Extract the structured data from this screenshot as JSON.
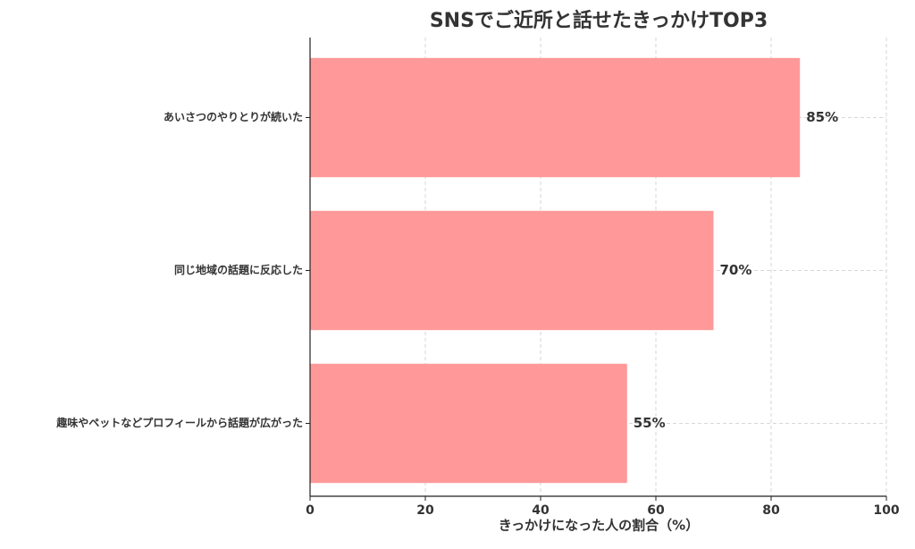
{
  "chart_data": {
    "type": "barh",
    "title": "SNSでご近所と話せたきっかけTOP3",
    "x_label": "きっかけになった人の割合（%）",
    "categories": [
      "あいさつのやりとりが続いた",
      "同じ地域の話題に反応した",
      "趣味やペットなどプロフィールから話題が広がった"
    ],
    "values": [
      85,
      70,
      55
    ],
    "value_labels": [
      "85%",
      "70%",
      "55%"
    ],
    "color": "#ff9999",
    "xlim": [
      0,
      100
    ],
    "xticks": [
      0,
      20,
      40,
      60,
      80,
      100
    ],
    "grid": true
  }
}
